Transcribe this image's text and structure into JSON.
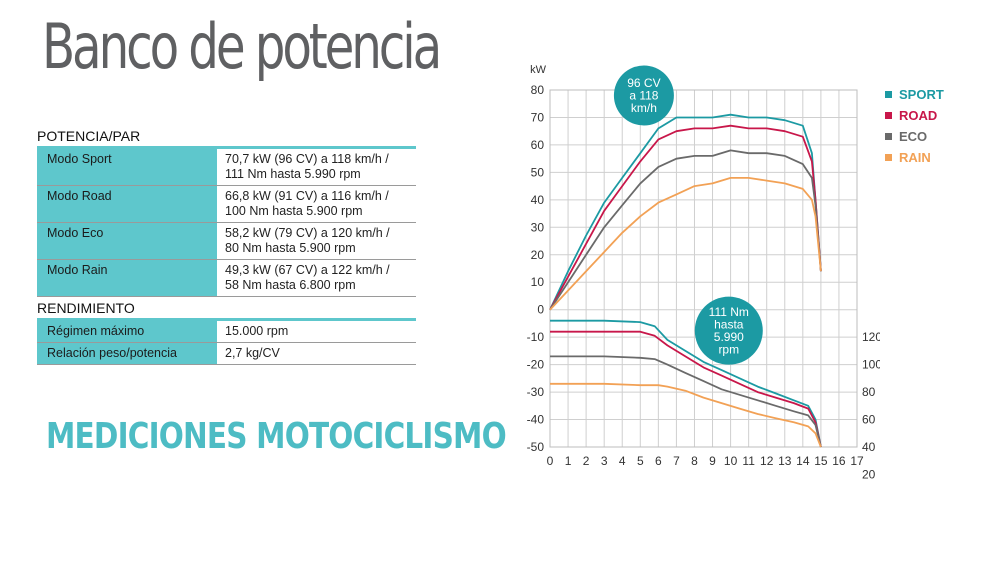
{
  "title": "Banco de potencia",
  "brand": "MEDICIONES MOTOCICLISMO",
  "potencia": {
    "heading": "POTENCIA/PAR",
    "rows": [
      {
        "label": "Modo Sport",
        "line1": "70,7 kW (96 CV) a 118 km/h /",
        "line2": "111 Nm hasta 5.990 rpm"
      },
      {
        "label": "Modo Road",
        "line1": "66,8 kW (91 CV) a 116 km/h /",
        "line2": "100 Nm hasta 5.900 rpm"
      },
      {
        "label": "Modo Eco",
        "line1": "58,2 kW (79 CV) a 120 km/h /",
        "line2": "80 Nm hasta 5.900 rpm"
      },
      {
        "label": "Modo Rain",
        "line1": "49,3 kW (67 CV) a 122 km/h /",
        "line2": "58 Nm hasta 6.800 rpm"
      }
    ]
  },
  "rendimiento": {
    "heading": "RENDIMIENTO",
    "rows": [
      {
        "label": "Régimen máximo",
        "value": "15.000 rpm"
      },
      {
        "label": "Relación peso/potencia",
        "value": "2,7 kg/CV"
      }
    ]
  },
  "chart_data": {
    "type": "line",
    "ylabel": "kW",
    "x_ticks": [
      0,
      1,
      2,
      3,
      4,
      5,
      6,
      7,
      8,
      9,
      10,
      11,
      12,
      13,
      14,
      15,
      16,
      17
    ],
    "xlim": [
      0,
      17
    ],
    "ylim_left": [
      -50,
      80
    ],
    "y_ticks_left": [
      80,
      70,
      60,
      50,
      40,
      30,
      20,
      10,
      0,
      -10,
      -20,
      -30,
      -40,
      -50
    ],
    "y_ticks_right": [
      120,
      100,
      80,
      60,
      40,
      20
    ],
    "grid": true,
    "legend_position": "right",
    "annotations": [
      {
        "lines": [
          "96 CV",
          "a 118",
          "km/h"
        ],
        "x": 5.2,
        "y": 78
      },
      {
        "lines": [
          "111 Nm",
          "hasta",
          "5.990",
          "rpm"
        ],
        "x": 9.9,
        "y": -4
      }
    ],
    "series": [
      {
        "name": "SPORT",
        "color": "#1c9aa3",
        "power": [
          [
            0,
            0
          ],
          [
            1,
            14
          ],
          [
            2,
            27
          ],
          [
            3,
            39
          ],
          [
            4,
            48
          ],
          [
            5,
            57
          ],
          [
            6,
            66
          ],
          [
            7,
            70
          ],
          [
            8,
            70
          ],
          [
            9,
            70
          ],
          [
            10,
            71
          ],
          [
            11,
            70
          ],
          [
            12,
            70
          ],
          [
            13,
            69
          ],
          [
            14,
            67
          ],
          [
            14.5,
            57
          ],
          [
            14.7,
            40
          ],
          [
            15,
            14
          ]
        ],
        "torque": [
          [
            0,
            -4
          ],
          [
            3,
            -4
          ],
          [
            5,
            -4.5
          ],
          [
            5.8,
            -6
          ],
          [
            6.5,
            -11
          ],
          [
            7.5,
            -15
          ],
          [
            8.5,
            -19
          ],
          [
            9.5,
            -22
          ],
          [
            10.5,
            -25
          ],
          [
            11.5,
            -28
          ],
          [
            12.5,
            -30.5
          ],
          [
            13.5,
            -33
          ],
          [
            14.3,
            -35
          ],
          [
            14.7,
            -40
          ],
          [
            15,
            -50
          ]
        ]
      },
      {
        "name": "ROAD",
        "color": "#c8174a",
        "power": [
          [
            0,
            0
          ],
          [
            1,
            12
          ],
          [
            2,
            24
          ],
          [
            3,
            36
          ],
          [
            4,
            45
          ],
          [
            5,
            54
          ],
          [
            6,
            62
          ],
          [
            7,
            65
          ],
          [
            8,
            66
          ],
          [
            9,
            66
          ],
          [
            10,
            67
          ],
          [
            11,
            66
          ],
          [
            12,
            66
          ],
          [
            13,
            65
          ],
          [
            14,
            63
          ],
          [
            14.5,
            54
          ],
          [
            14.7,
            40
          ],
          [
            15,
            14
          ]
        ],
        "torque": [
          [
            0,
            -8
          ],
          [
            3,
            -8
          ],
          [
            5,
            -8
          ],
          [
            5.8,
            -9.5
          ],
          [
            6.5,
            -13
          ],
          [
            7.5,
            -17
          ],
          [
            8.5,
            -21
          ],
          [
            9.5,
            -24
          ],
          [
            10.5,
            -27
          ],
          [
            11.5,
            -30
          ],
          [
            12.5,
            -32
          ],
          [
            13.5,
            -34
          ],
          [
            14.3,
            -36
          ],
          [
            14.7,
            -41
          ],
          [
            15,
            -50
          ]
        ]
      },
      {
        "name": "ECO",
        "color": "#6a6a6a",
        "power": [
          [
            0,
            0
          ],
          [
            1,
            10
          ],
          [
            2,
            20
          ],
          [
            3,
            30
          ],
          [
            4,
            38
          ],
          [
            5,
            46
          ],
          [
            6,
            52
          ],
          [
            7,
            55
          ],
          [
            8,
            56
          ],
          [
            9,
            56
          ],
          [
            10,
            58
          ],
          [
            11,
            57
          ],
          [
            12,
            57
          ],
          [
            13,
            56
          ],
          [
            14,
            53
          ],
          [
            14.5,
            48
          ],
          [
            14.7,
            38
          ],
          [
            15,
            14
          ]
        ],
        "torque": [
          [
            0,
            -17
          ],
          [
            3,
            -17
          ],
          [
            5,
            -17.5
          ],
          [
            5.8,
            -18
          ],
          [
            6.5,
            -20
          ],
          [
            7.5,
            -23
          ],
          [
            8.5,
            -26
          ],
          [
            9.5,
            -29
          ],
          [
            10.5,
            -31
          ],
          [
            11.5,
            -33
          ],
          [
            12.5,
            -35
          ],
          [
            13.5,
            -37
          ],
          [
            14.3,
            -38.5
          ],
          [
            14.7,
            -42
          ],
          [
            15,
            -50
          ]
        ]
      },
      {
        "name": "RAIN",
        "color": "#f2a155",
        "power": [
          [
            0,
            0
          ],
          [
            1,
            7
          ],
          [
            2,
            14
          ],
          [
            3,
            21
          ],
          [
            4,
            28
          ],
          [
            5,
            34
          ],
          [
            6,
            39
          ],
          [
            7,
            42
          ],
          [
            8,
            45
          ],
          [
            9,
            46
          ],
          [
            10,
            48
          ],
          [
            11,
            48
          ],
          [
            12,
            47
          ],
          [
            13,
            46
          ],
          [
            14,
            44
          ],
          [
            14.5,
            40
          ],
          [
            14.7,
            34
          ],
          [
            15,
            14
          ]
        ],
        "torque": [
          [
            0,
            -27
          ],
          [
            3,
            -27
          ],
          [
            5,
            -27.5
          ],
          [
            6,
            -27.5
          ],
          [
            6.5,
            -28
          ],
          [
            7.5,
            -29.5
          ],
          [
            8.5,
            -32
          ],
          [
            9.5,
            -34
          ],
          [
            10.5,
            -36
          ],
          [
            11.5,
            -38
          ],
          [
            12.5,
            -39.5
          ],
          [
            13.5,
            -41
          ],
          [
            14.3,
            -42.5
          ],
          [
            14.7,
            -45
          ],
          [
            15,
            -50
          ]
        ]
      }
    ]
  }
}
